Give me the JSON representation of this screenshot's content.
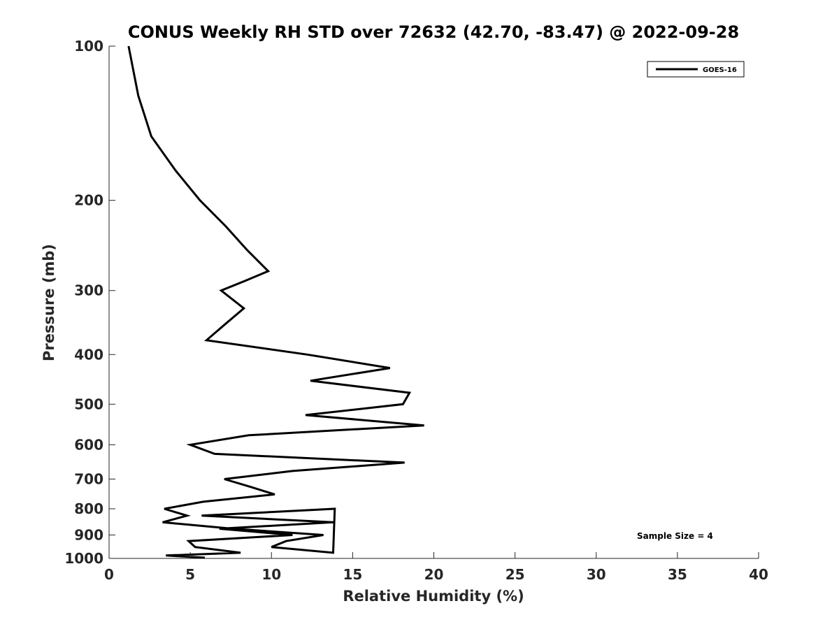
{
  "chart_data": {
    "type": "line",
    "title": "CONUS Weekly RH STD over 72632 (42.70, -83.47) @ 2022-09-28",
    "xlabel": "Relative Humidity (%)",
    "ylabel": "Pressure (mb)",
    "xlim": [
      0,
      40
    ],
    "ylim": [
      100,
      1000
    ],
    "yscale": "log",
    "y_reversed": true,
    "xticks": [
      0,
      5,
      10,
      15,
      20,
      25,
      30,
      35,
      40
    ],
    "xtick_labels": [
      "0",
      "5",
      "10",
      "15",
      "20",
      "25",
      "30",
      "35",
      "40"
    ],
    "yticks": [
      100,
      200,
      300,
      400,
      500,
      600,
      700,
      800,
      900,
      1000
    ],
    "ytick_labels": [
      "100",
      "200",
      "300",
      "400",
      "500",
      "600",
      "700",
      "800",
      "900",
      "1000"
    ],
    "grid": false,
    "legend_position": "top-right",
    "series": [
      {
        "name": "GOES-16",
        "color": "#000000",
        "points": [
          [
            1.2,
            100
          ],
          [
            1.8,
            125
          ],
          [
            2.6,
            150
          ],
          [
            4.1,
            175
          ],
          [
            5.6,
            200
          ],
          [
            7.2,
            225
          ],
          [
            8.5,
            250
          ],
          [
            9.8,
            275
          ],
          [
            8.4,
            287
          ],
          [
            6.9,
            300
          ],
          [
            8.3,
            325
          ],
          [
            7.1,
            350
          ],
          [
            6.0,
            375
          ],
          [
            12.2,
            400
          ],
          [
            17.3,
            425
          ],
          [
            12.4,
            450
          ],
          [
            18.5,
            475
          ],
          [
            18.1,
            500
          ],
          [
            12.1,
            525
          ],
          [
            19.4,
            550
          ],
          [
            8.6,
            575
          ],
          [
            5.0,
            600
          ],
          [
            6.5,
            625
          ],
          [
            18.2,
            650
          ],
          [
            11.3,
            675
          ],
          [
            7.1,
            700
          ],
          [
            8.7,
            725
          ],
          [
            10.2,
            750
          ],
          [
            5.8,
            775
          ],
          [
            3.4,
            800
          ],
          [
            4.8,
            825
          ],
          [
            3.3,
            850
          ],
          [
            7.6,
            875
          ],
          [
            13.2,
            900
          ],
          [
            10.9,
            925
          ],
          [
            10.0,
            950
          ],
          [
            13.8,
            975
          ],
          [
            13.9,
            800
          ],
          [
            5.7,
            825
          ],
          [
            13.8,
            850
          ],
          [
            6.8,
            875
          ],
          [
            11.3,
            900
          ],
          [
            4.9,
            925
          ],
          [
            5.3,
            950
          ],
          [
            8.1,
            975
          ],
          [
            3.5,
            987
          ],
          [
            5.9,
            997
          ]
        ]
      }
    ],
    "legend": [
      "GOES-16"
    ],
    "annotations": [
      "Sample Size = 4"
    ]
  }
}
